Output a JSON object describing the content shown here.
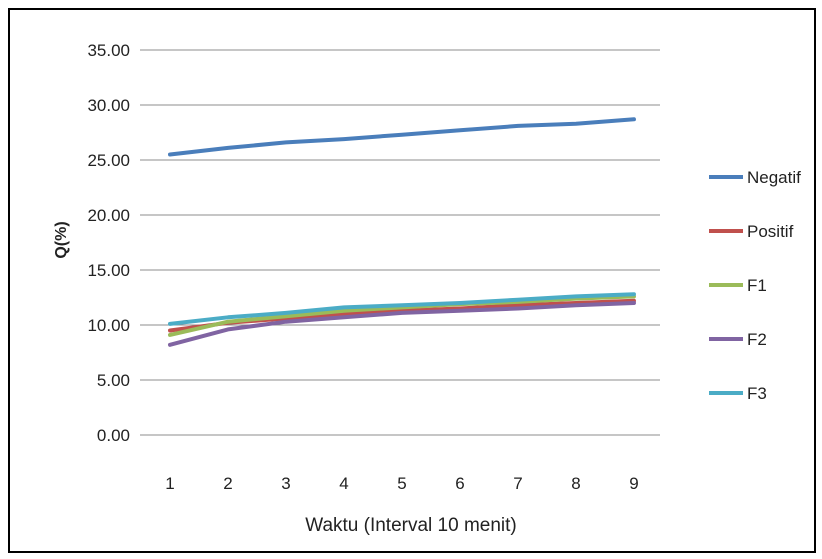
{
  "chart_data": {
    "type": "line",
    "xlabel": "Waktu (Interval 10 menit)",
    "ylabel": "Q(%)",
    "ylim": [
      0,
      35
    ],
    "y_ticks": [
      "0.00",
      "5.00",
      "10.00",
      "15.00",
      "20.00",
      "25.00",
      "30.00",
      "35.00"
    ],
    "x": [
      1,
      2,
      3,
      4,
      5,
      6,
      7,
      8,
      9
    ],
    "grid": "horizontal",
    "legend_position": "right",
    "series": [
      {
        "name": "Negatif",
        "color": "#4a7ebb",
        "values": [
          25.5,
          26.1,
          26.6,
          26.9,
          27.3,
          27.7,
          28.1,
          28.3,
          28.7
        ]
      },
      {
        "name": "Positif",
        "color": "#c0504d",
        "values": [
          9.5,
          10.2,
          10.6,
          11.0,
          11.3,
          11.5,
          11.8,
          12.0,
          12.2
        ]
      },
      {
        "name": "F1",
        "color": "#9bbb59",
        "values": [
          9.1,
          10.3,
          10.8,
          11.3,
          11.6,
          11.9,
          12.1,
          12.4,
          12.6
        ]
      },
      {
        "name": "F2",
        "color": "#8064a2",
        "values": [
          8.2,
          9.6,
          10.3,
          10.7,
          11.1,
          11.3,
          11.5,
          11.8,
          12.0
        ]
      },
      {
        "name": "F3",
        "color": "#4bacc6",
        "values": [
          10.1,
          10.7,
          11.1,
          11.6,
          11.8,
          12.0,
          12.3,
          12.6,
          12.8
        ]
      }
    ]
  }
}
